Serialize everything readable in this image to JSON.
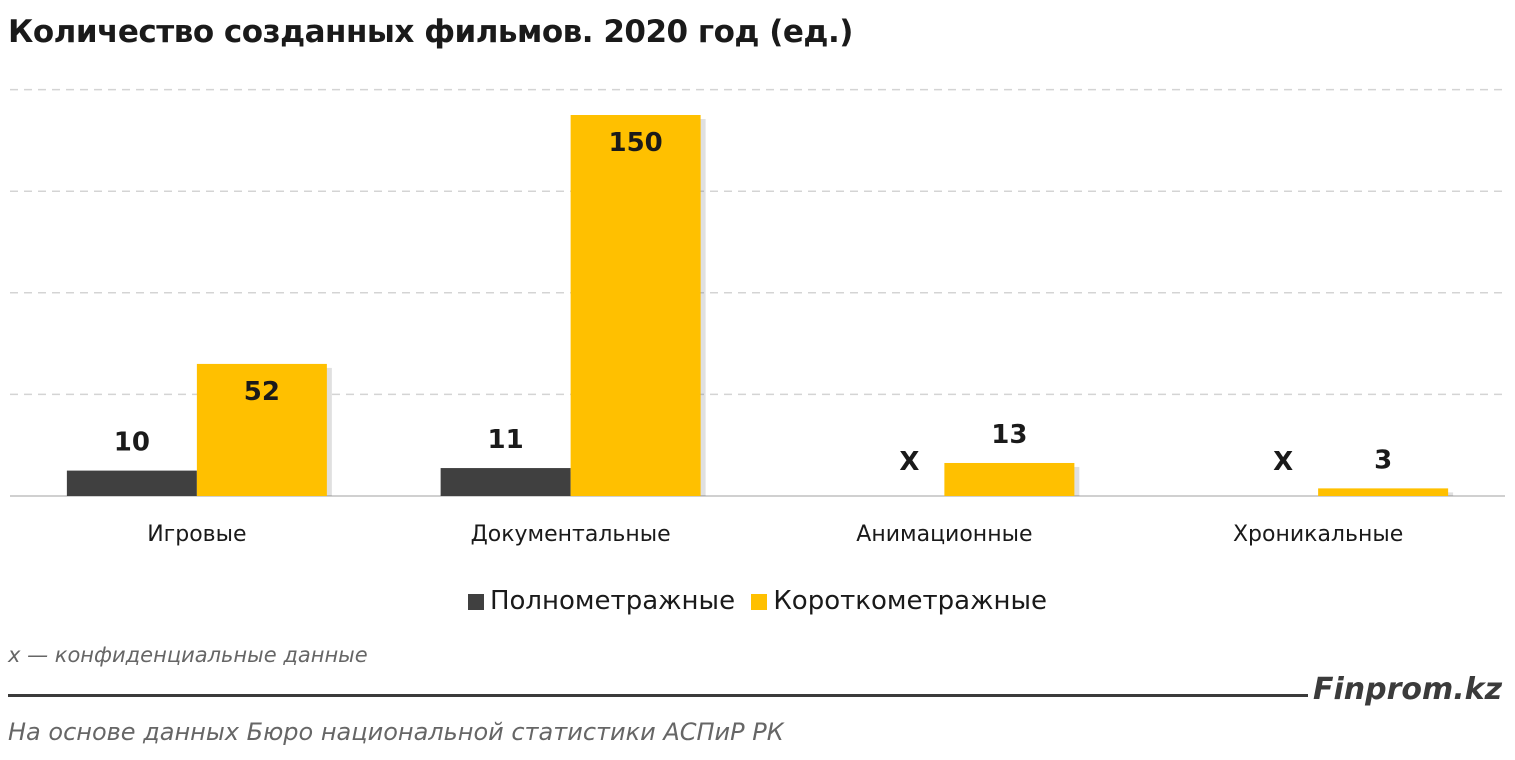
{
  "chart_data": {
    "type": "bar",
    "title": "Количество созданных фильмов. 2020 год (ед.)",
    "categories": [
      "Игровые",
      "Документальные",
      "Анимационные",
      "Хроникальные"
    ],
    "series": [
      {
        "name": "Полнометражные",
        "color": "#404040",
        "values": [
          10,
          11,
          null,
          null
        ],
        "labels": [
          "10",
          "11",
          "Х",
          "Х"
        ]
      },
      {
        "name": "Короткометражные",
        "color": "#FFC000",
        "values": [
          52,
          150,
          13,
          3
        ],
        "labels": [
          "52",
          "150",
          "13",
          "3"
        ]
      }
    ],
    "ylim": [
      0,
      160
    ],
    "grid": true,
    "legend_position": "bottom"
  },
  "footnote": "х — конфиденциальные данные",
  "brand": "Finprom.kz",
  "source": "На основе данных Бюро национальной статистики АСПиР РК"
}
